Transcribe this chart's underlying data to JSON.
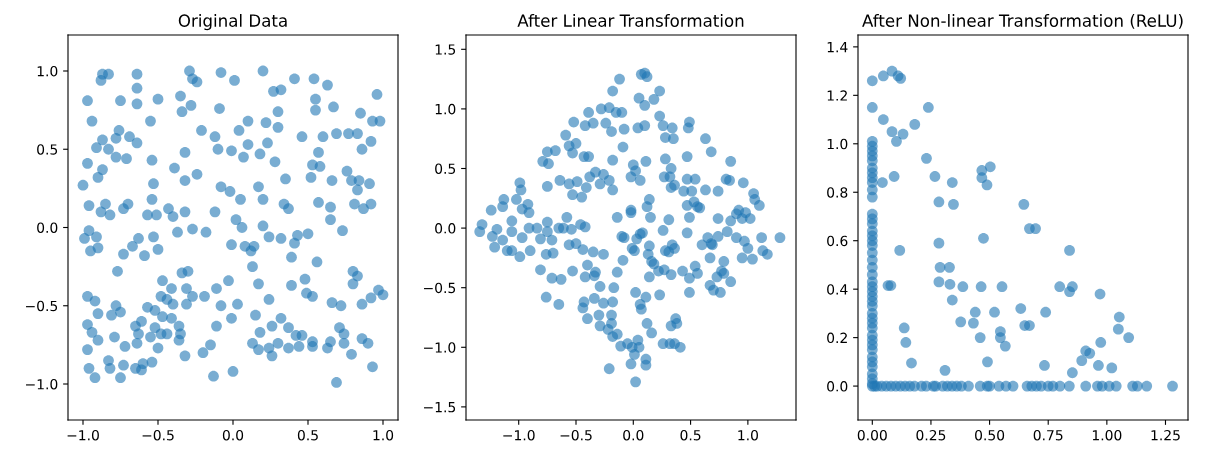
{
  "chart_data": [
    {
      "type": "scatter",
      "title": "Original Data",
      "color": "#1f77b4",
      "marker": "circle",
      "grid": false,
      "x": [
        -0.87,
        -0.83,
        -0.88,
        -0.64,
        -0.29,
        -0.27,
        -0.24,
        -0.08,
        0.01,
        0.2,
        0.41,
        0.54,
        0.63,
        0.96,
        -0.97,
        -0.75,
        -0.64,
        -0.64,
        -0.5,
        -0.35,
        -0.28,
        -0.09,
        0.27,
        0.32,
        0.55,
        0.55,
        0.67,
        0.85,
        0.93,
        0.98,
        0.3,
        -0.94,
        -0.76,
        -0.55,
        -0.34,
        -0.21,
        -0.12,
        0.04,
        0.1,
        0.22,
        0.3,
        0.46,
        0.6,
        0.69,
        0.77,
        0.83,
        0.92,
        -0.87,
        -0.91,
        -0.78,
        -0.69,
        -0.64,
        -0.83,
        -0.78,
        -0.71,
        -0.54,
        -0.32,
        -0.1,
        -0.01,
        0.1,
        0.18,
        0.23,
        0.07,
        0.28,
        0.57,
        0.53,
        0.58,
        0.86,
        -0.97,
        -0.87,
        -0.9,
        -1.0,
        -0.39,
        -0.32,
        -0.24,
        -0.53,
        -0.08,
        -0.02,
        0.17,
        0.35,
        0.52,
        0.66,
        0.76,
        0.79,
        0.84,
        0.83,
        0.91,
        -0.96,
        -0.88,
        -0.85,
        -0.82,
        -0.73,
        -0.7,
        -0.54,
        -0.57,
        -0.51,
        -0.43,
        -0.4,
        -0.32,
        -0.12,
        0.05,
        0.2,
        0.34,
        0.37,
        0.57,
        0.65,
        0.65,
        0.81,
        0.87,
        0.92,
        0.73,
        -0.96,
        -0.99,
        -0.91,
        -0.95,
        -0.9,
        -0.73,
        -0.67,
        -0.63,
        -0.59,
        -0.5,
        -0.53,
        -0.37,
        -0.27,
        -0.18,
        -0.01,
        0.02,
        0.06,
        0.08,
        0.14,
        0.12,
        0.2,
        0.24,
        0.32,
        0.41,
        0.43,
        0.5,
        0.39,
        0.56,
        0.13,
        -0.77,
        -0.47,
        -0.34,
        -0.3,
        -0.41,
        -0.31,
        -0.48,
        -0.44,
        -0.4,
        -0.31,
        -0.27,
        -0.19,
        -0.11,
        -0.03,
        -0.08,
        0.03,
        -0.01,
        0.17,
        0.24,
        0.39,
        0.48,
        0.49,
        0.53,
        0.66,
        0.72,
        0.8,
        0.83,
        0.8,
        0.86,
        0.92,
        0.97,
        1.0,
        -0.97,
        -0.92,
        -0.9,
        -0.78,
        -0.81,
        -0.75,
        -0.97,
        -0.94,
        -0.9,
        -0.79,
        -0.72,
        -0.65,
        -0.61,
        -0.57,
        -0.52,
        -0.47,
        -0.41,
        -0.52,
        -0.48,
        -0.44,
        -0.36,
        -0.35,
        -0.36,
        -0.63,
        -0.55,
        -0.5,
        -0.64,
        -0.97,
        -0.83,
        -0.73,
        -0.82,
        -0.96,
        -0.92,
        -0.75,
        -0.65,
        -0.6,
        -0.54,
        -0.61,
        -0.32,
        -0.2,
        -0.15,
        -0.13,
        0.0,
        -0.11,
        0.15,
        0.18,
        0.26,
        0.32,
        0.37,
        0.42,
        0.46,
        0.13,
        0.17,
        0.24,
        0.26,
        0.3,
        0.37,
        0.44,
        0.53,
        0.53,
        0.63,
        0.65,
        0.71,
        0.74,
        0.74,
        0.79,
        0.86,
        0.9,
        0.93,
        0.69
      ],
      "values": [
        0.98,
        0.98,
        0.94,
        0.98,
        1.0,
        0.95,
        0.93,
        0.99,
        0.94,
        1.0,
        0.95,
        0.95,
        0.91,
        0.85,
        0.81,
        0.81,
        0.89,
        0.79,
        0.82,
        0.84,
        0.78,
        0.76,
        0.87,
        0.88,
        0.82,
        0.75,
        0.77,
        0.73,
        0.68,
        0.68,
        0.74,
        0.68,
        0.62,
        0.68,
        0.74,
        0.62,
        0.58,
        0.62,
        0.68,
        0.67,
        0.64,
        0.58,
        0.58,
        0.6,
        0.6,
        0.6,
        0.55,
        0.56,
        0.51,
        0.57,
        0.58,
        0.54,
        0.5,
        0.45,
        0.44,
        0.43,
        0.48,
        0.5,
        0.49,
        0.53,
        0.47,
        0.54,
        0.45,
        0.42,
        0.48,
        0.4,
        0.39,
        0.5,
        0.41,
        0.37,
        0.32,
        0.27,
        0.38,
        0.3,
        0.34,
        0.28,
        0.26,
        0.23,
        0.26,
        0.31,
        0.32,
        0.3,
        0.36,
        0.3,
        0.3,
        0.24,
        0.28,
        0.14,
        0.1,
        0.15,
        0.08,
        0.12,
        0.15,
        0.18,
        0.08,
        0.08,
        0.12,
        0.07,
        0.1,
        0.1,
        0.18,
        0.18,
        0.15,
        0.12,
        0.16,
        0.13,
        0.05,
        0.15,
        0.12,
        0.15,
        -0.02,
        -0.02,
        -0.07,
        -0.06,
        -0.15,
        -0.13,
        -0.17,
        -0.12,
        -0.07,
        -0.18,
        -0.14,
        -0.06,
        -0.03,
        -0.01,
        -0.03,
        -0.11,
        0.05,
        0.0,
        -0.12,
        -0.12,
        -0.15,
        0.01,
        -0.06,
        -0.07,
        -0.1,
        -0.05,
        -0.04,
        -0.19,
        -0.22,
        -0.25,
        -0.28,
        -0.34,
        -0.29,
        -0.28,
        -0.39,
        -0.39,
        -0.44,
        -0.46,
        -0.49,
        -0.49,
        -0.44,
        -0.44,
        -0.39,
        -0.34,
        -0.5,
        -0.49,
        -0.58,
        -0.36,
        -0.46,
        -0.37,
        -0.33,
        -0.42,
        -0.44,
        -0.48,
        -0.5,
        -0.28,
        -0.31,
        -0.36,
        -0.49,
        -0.45,
        -0.4,
        -0.43,
        -0.44,
        -0.47,
        -0.55,
        -0.5,
        -0.56,
        -0.54,
        -0.62,
        -0.67,
        -0.72,
        -0.7,
        -0.76,
        -0.63,
        -0.6,
        -0.51,
        -0.53,
        -0.57,
        -0.58,
        -0.64,
        -0.68,
        -0.68,
        -0.63,
        -0.68,
        -0.72,
        -0.68,
        -0.7,
        -0.77,
        -0.74,
        -0.78,
        -0.85,
        -0.88,
        -0.9,
        -0.9,
        -0.96,
        -0.96,
        -0.9,
        -0.87,
        -0.86,
        -0.91,
        -0.82,
        -0.8,
        -0.75,
        -0.95,
        -0.92,
        -0.63,
        -0.56,
        -0.67,
        -0.63,
        -0.58,
        -0.64,
        -0.69,
        -0.69,
        -0.74,
        -0.78,
        -0.77,
        -0.82,
        -0.74,
        -0.77,
        -0.76,
        -0.73,
        -0.76,
        -0.77,
        -0.73,
        -0.64,
        -0.68,
        -0.74,
        -0.81,
        -0.71,
        -0.74,
        -0.89,
        -0.99
      ],
      "xlim": [
        -1.1,
        1.1
      ],
      "ylim": [
        -1.23,
        1.23
      ],
      "xticks": [
        {
          "value": -1.0,
          "label": "−1.0"
        },
        {
          "value": -0.5,
          "label": "−0.5"
        },
        {
          "value": 0.0,
          "label": "0.0"
        },
        {
          "value": 0.5,
          "label": "0.5"
        },
        {
          "value": 1.0,
          "label": "1.0"
        }
      ],
      "yticks": [
        {
          "value": -1.0,
          "label": "−1.0"
        },
        {
          "value": -0.5,
          "label": "−0.5"
        },
        {
          "value": 0.0,
          "label": "0.0"
        },
        {
          "value": 0.5,
          "label": "0.5"
        },
        {
          "value": 1.0,
          "label": "1.0"
        }
      ]
    },
    {
      "type": "scatter",
      "title": "After Linear Transformation",
      "color": "#1f77b4",
      "marker": "circle",
      "grid": false,
      "x": [
        0.07,
        0.1,
        0.12,
        -0.12,
        -0.18,
        0.23,
        0.05,
        0.1,
        0.18,
        -0.28,
        -0.21,
        -0.15,
        -0.1,
        -0.39,
        -0.52,
        -0.42,
        -0.35,
        -0.24,
        -0.19,
        -0.08,
        0.04,
        0.1,
        0.23,
        0.26,
        0.34,
        0.49,
        0.48,
        0.28,
        0.35,
        -0.59,
        -0.56,
        -0.5,
        -0.53,
        -0.75,
        -0.68,
        -0.79,
        -0.74,
        -0.43,
        -0.39,
        -0.18,
        -0.09,
        0.63,
        0.68,
        0.47,
        0.28,
        0.11,
        0.0,
        0.02,
        -0.02,
        0.06,
        0.33,
        0.32,
        0.27,
        0.36,
        0.33,
        0.47,
        0.54,
        0.44,
        0.51,
        0.63,
        0.74,
        0.85,
        0.81,
        0.84,
        0.96,
        -0.33,
        -0.38,
        -0.26,
        -0.29,
        -0.21,
        -0.18,
        -0.64,
        -0.56,
        -0.49,
        -0.53,
        -0.45,
        -0.41,
        -0.75,
        -0.99,
        -0.98,
        -1.02,
        -1.13,
        -1.14,
        -1.24,
        -0.97,
        -0.92,
        -0.91,
        -1.32,
        -1.34,
        -1.19,
        -1.23,
        -1.21,
        -1.14,
        -1.06,
        -1.06,
        -1.1,
        -1.06,
        -0.99,
        -0.97,
        -0.91,
        -0.84,
        -0.81,
        -0.9,
        -0.75,
        -0.75,
        -0.71,
        -0.76,
        -0.7,
        -0.81,
        -0.65,
        -0.58,
        -0.61,
        -0.54,
        -0.56,
        -0.5,
        -0.46,
        -0.42,
        -0.44,
        -0.35,
        -0.26,
        -0.4,
        -0.42,
        -0.33,
        -0.34,
        -0.53,
        -0.71,
        -0.63,
        -0.76,
        -0.65,
        -0.29,
        -0.17,
        -0.14,
        -0.09,
        -0.18,
        -0.26,
        -0.34,
        -0.43,
        -0.44,
        -0.4,
        -0.3,
        -0.29,
        -0.19,
        -0.19,
        -0.22,
        -0.18,
        -0.14,
        -0.11,
        -0.05,
        -0.01,
        0.04,
        0.05,
        0.01,
        -0.02,
        0.11,
        0.11,
        -0.21,
        0.02,
        0.02,
        0.06,
        0.07,
        0.11,
        0.12,
        0.16,
        0.23,
        0.26,
        0.32,
        0.36,
        0.41,
        0.33,
        0.37,
        0.38,
        0.14,
        0.22,
        0.27,
        0.33,
        0.16,
        0.18,
        -0.1,
        -0.08,
        -0.02,
        -0.02,
        -0.14,
        0.06,
        0.08,
        0.03,
        -0.01,
        0.01,
        0.14,
        0.13,
        0.12,
        0.15,
        0.14,
        0.31,
        0.26,
        0.28,
        0.34,
        0.31,
        0.36,
        0.47,
        0.49,
        0.47,
        0.56,
        0.53,
        0.58,
        0.6,
        0.65,
        0.68,
        0.67,
        0.74,
        0.69,
        0.74,
        0.82,
        0.85,
        0.9,
        0.92,
        0.98,
        1.02,
        0.95,
        0.9,
        0.97,
        1.0,
        0.95,
        1.04,
        1.06,
        1.05,
        1.1,
        1.12,
        1.13,
        1.17,
        1.28,
        0.54,
        0.56,
        0.49,
        0.49,
        0.67,
        0.7,
        0.76,
        0.73,
        0.77,
        0.79,
        0.85,
        0.79,
        0.43
      ],
      "values": [
        1.29,
        1.3,
        1.27,
        1.25,
        1.15,
        1.15,
        1.09,
        1.03,
        1.08,
        1.0,
        1.01,
        0.97,
        0.97,
        0.97,
        0.89,
        0.86,
        0.88,
        0.88,
        0.81,
        0.83,
        0.84,
        0.86,
        0.94,
        0.86,
        0.84,
        0.89,
        0.84,
        0.76,
        0.75,
        0.78,
        0.69,
        0.71,
        0.63,
        0.64,
        0.65,
        0.56,
        0.54,
        0.6,
        0.6,
        0.57,
        0.68,
        0.75,
        0.64,
        0.6,
        0.58,
        0.56,
        0.53,
        0.48,
        0.43,
        0.4,
        0.5,
        0.43,
        0.43,
        0.36,
        0.34,
        0.41,
        0.41,
        0.31,
        0.31,
        0.32,
        0.31,
        0.56,
        0.41,
        0.4,
        0.38,
        0.47,
        0.43,
        0.45,
        0.37,
        0.4,
        0.32,
        0.4,
        0.37,
        0.39,
        0.28,
        0.26,
        0.34,
        0.35,
        0.38,
        0.32,
        0.24,
        0.24,
        0.18,
        0.15,
        0.16,
        0.2,
        0.13,
        0.03,
        -0.03,
        -0.01,
        -0.07,
        -0.16,
        -0.1,
        0.06,
        -0.03,
        -0.19,
        -0.19,
        -0.24,
        -0.08,
        0.0,
        0.0,
        -0.09,
        -0.19,
        0.05,
        -0.03,
        -0.1,
        -0.22,
        -0.21,
        -0.35,
        0.0,
        0.09,
        0.0,
        -0.01,
        -0.14,
        -0.13,
        0.03,
        0.01,
        -0.18,
        -0.2,
        -0.22,
        -0.31,
        -0.41,
        -0.37,
        -0.4,
        -0.36,
        -0.42,
        -0.43,
        -0.58,
        -0.64,
        -0.49,
        -0.5,
        -0.37,
        -0.27,
        -0.62,
        -0.63,
        -0.59,
        -0.62,
        -0.67,
        -0.76,
        -0.73,
        -0.82,
        -0.73,
        -0.8,
        -0.85,
        -0.91,
        -0.89,
        -0.99,
        -0.97,
        -1.0,
        -0.94,
        -1.0,
        -1.06,
        -1.14,
        -1.1,
        -1.15,
        -1.18,
        -1.29,
        -0.54,
        -0.64,
        -0.68,
        -0.58,
        -0.8,
        -0.88,
        -0.56,
        -0.97,
        -0.97,
        -0.97,
        -1.0,
        -0.82,
        -0.76,
        -0.8,
        -0.41,
        -0.36,
        -0.35,
        -0.39,
        -0.28,
        -0.3,
        -0.07,
        -0.08,
        0.15,
        0.13,
        0.09,
        -0.05,
        -0.04,
        -0.09,
        -0.17,
        -0.19,
        -0.15,
        -0.22,
        0.18,
        0.09,
        0.24,
        0.07,
        -0.02,
        -0.19,
        -0.14,
        -0.2,
        -0.17,
        -0.04,
        0.09,
        0.19,
        0.18,
        0.22,
        0.17,
        -0.14,
        -0.08,
        -0.13,
        -0.25,
        -0.07,
        -0.14,
        0.08,
        -0.03,
        0.06,
        0.12,
        0.15,
        0.13,
        0.08,
        0.08,
        -0.08,
        -0.11,
        -0.17,
        -0.25,
        -0.26,
        0.24,
        0.29,
        0.19,
        -0.08,
        -0.19,
        -0.22,
        -0.08,
        -0.32,
        -0.38,
        -0.42,
        -0.54,
        -0.48,
        -0.52,
        -0.54,
        -0.41,
        -0.36,
        -0.28,
        -0.45,
        -0.38,
        -0.36
      ],
      "xlim": [
        -1.46,
        1.42
      ],
      "ylim": [
        -1.61,
        1.62
      ],
      "xticks": [
        {
          "value": -1.0,
          "label": "−1.0"
        },
        {
          "value": -0.5,
          "label": "−0.5"
        },
        {
          "value": 0.0,
          "label": "0.0"
        },
        {
          "value": 0.5,
          "label": "0.5"
        },
        {
          "value": 1.0,
          "label": "1.0"
        }
      ],
      "yticks": [
        {
          "value": -1.5,
          "label": "−1.5"
        },
        {
          "value": -1.0,
          "label": "−1.0"
        },
        {
          "value": -0.5,
          "label": "−0.5"
        },
        {
          "value": 0.0,
          "label": "0.0"
        },
        {
          "value": 0.5,
          "label": "0.5"
        },
        {
          "value": 1.0,
          "label": "1.0"
        },
        {
          "value": 1.5,
          "label": "1.5"
        }
      ]
    },
    {
      "type": "scatter",
      "title": "After Non-linear Transformation (ReLU)",
      "color": "#1f77b4",
      "marker": "circle",
      "grid": false,
      "x": [
        0,
        0.047,
        0.084,
        0.11,
        0.121,
        0,
        0.047,
        0.239,
        0.181,
        0.084,
        0.103,
        0.131,
        0.231,
        0.043,
        0.093,
        0.267,
        0.341,
        0.284,
        0.346,
        0.467,
        0.503,
        0.467,
        0.489,
        0.646,
        0.67,
        0.696,
        0.474,
        0.117,
        0.284,
        0.841,
        0.289,
        0.329,
        0.067,
        0.079,
        0.284,
        0.331,
        0.386,
        0.464,
        0.553,
        0.799,
        0.841,
        0.853,
        0.971,
        0.341,
        0.633,
        0.439,
        0.521,
        0.739,
        1.053,
        0.377,
        0.431,
        0.65,
        0.67,
        0.136,
        0.546,
        0.546,
        0.46,
        1.093,
        1.049,
        0.567,
        0.143,
        0.974,
        0.91,
        0.927,
        0.893,
        0.167,
        0.491,
        0.734,
        0.964,
        1.021,
        0.31,
        0.853,
        0,
        0,
        0,
        0,
        0,
        0,
        0,
        0,
        0,
        0,
        0,
        0,
        0,
        0,
        0,
        0,
        0,
        0,
        0,
        0,
        0,
        0,
        0,
        0,
        0,
        0,
        0,
        0,
        0,
        0,
        0,
        0,
        0,
        0,
        0,
        0,
        0,
        0,
        0,
        0,
        0,
        0,
        0,
        0.01,
        0.02,
        0.04,
        0.06,
        0.08,
        0.1,
        0.12,
        0.14,
        0.16,
        0.18,
        0.21,
        0.23,
        0.26,
        0.27,
        0.3,
        0.32,
        0.34,
        0.36,
        0.38,
        0.41,
        0.46,
        0.49,
        0.5,
        0.54,
        0.57,
        0.6,
        0.66,
        0.68,
        0.7,
        0.72,
        0.75,
        0.77,
        0.8,
        0.84,
        0.91,
        0.96,
        0.98,
        1.01,
        1.04,
        1.11,
        1.13,
        1.17,
        1.28
      ],
      "values": [
        1.26,
        1.28,
        1.3,
        1.28,
        1.27,
        1.15,
        1.1,
        1.15,
        1.08,
        1.05,
        1.01,
        1.04,
        0.94,
        0.84,
        0.865,
        0.865,
        0.84,
        0.76,
        0.75,
        0.89,
        0.905,
        0.86,
        0.83,
        0.75,
        0.65,
        0.65,
        0.61,
        0.56,
        0.59,
        0.56,
        0.49,
        0.49,
        0.415,
        0.415,
        0.43,
        0.42,
        0.41,
        0.41,
        0.41,
        0.41,
        0.39,
        0.41,
        0.38,
        0.355,
        0.32,
        0.305,
        0.305,
        0.305,
        0.285,
        0.265,
        0.26,
        0.25,
        0.25,
        0.24,
        0.225,
        0.2,
        0.2,
        0.2,
        0.235,
        0.165,
        0.18,
        0.18,
        0.145,
        0.135,
        0.105,
        0.095,
        0.1,
        0.085,
        0.085,
        0.075,
        0.065,
        0.055,
        1.01,
        0.99,
        0.97,
        0.95,
        0.93,
        0.9,
        0.88,
        0.86,
        0.84,
        0.81,
        0.78,
        0.71,
        0.69,
        0.67,
        0.64,
        0.62,
        0.6,
        0.58,
        0.55,
        0.52,
        0.49,
        0.46,
        0.43,
        0.41,
        0.39,
        0.37,
        0.35,
        0.33,
        0.3,
        0.28,
        0.26,
        0.24,
        0.21,
        0.19,
        0.17,
        0.15,
        0.12,
        0.1,
        0.08,
        0.05,
        0.03,
        0.01,
        0,
        0,
        0,
        0,
        0,
        0,
        0,
        0,
        0,
        0,
        0,
        0,
        0,
        0,
        0,
        0,
        0,
        0,
        0,
        0,
        0,
        0,
        0,
        0,
        0,
        0,
        0,
        0,
        0,
        0,
        0,
        0,
        0,
        0,
        0,
        0,
        0,
        0,
        0,
        0,
        0,
        0,
        0,
        0
      ],
      "xlim": [
        -0.061,
        1.346
      ],
      "ylim": [
        -0.14,
        1.449
      ],
      "xticks": [
        {
          "value": 0,
          "label": "0.00"
        },
        {
          "value": 0.25,
          "label": "0.25"
        },
        {
          "value": 0.5,
          "label": "0.50"
        },
        {
          "value": 0.75,
          "label": "0.75"
        },
        {
          "value": 1.0,
          "label": "1.00"
        },
        {
          "value": 1.25,
          "label": "1.25"
        }
      ],
      "yticks": [
        {
          "value": 0,
          "label": "0.0"
        },
        {
          "value": 0.2,
          "label": "0.2"
        },
        {
          "value": 0.4,
          "label": "0.4"
        },
        {
          "value": 0.6,
          "label": "0.6"
        },
        {
          "value": 0.8,
          "label": "0.8"
        },
        {
          "value": 1.0,
          "label": "1.0"
        },
        {
          "value": 1.2,
          "label": "1.2"
        },
        {
          "value": 1.4,
          "label": "1.4"
        }
      ]
    }
  ]
}
